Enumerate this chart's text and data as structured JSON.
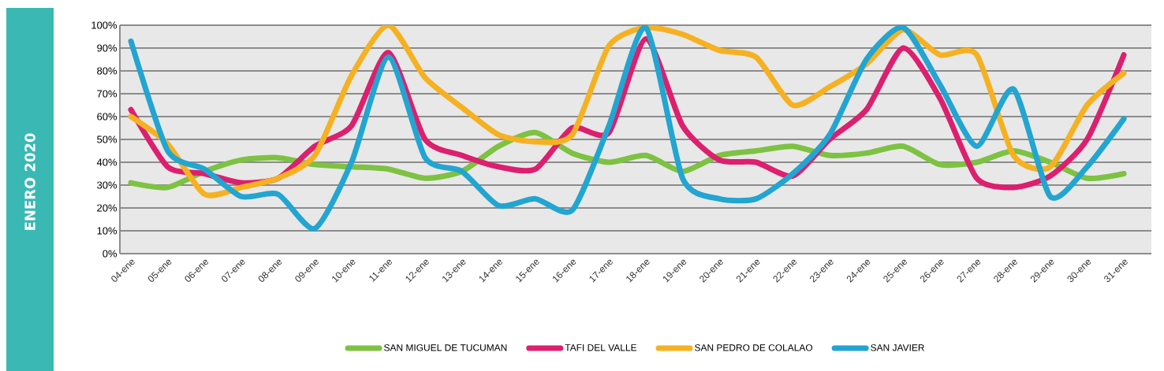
{
  "chart_data": {
    "type": "line",
    "title": "ENERO 2020",
    "categories": [
      "04-ene",
      "05-ene",
      "06-ene",
      "07-ene",
      "08-ene",
      "09-ene",
      "10-ene",
      "11-ene",
      "12-ene",
      "13-ene",
      "14-ene",
      "15-ene",
      "16-ene",
      "17-ene",
      "18-ene",
      "19-ene",
      "20-ene",
      "21-ene",
      "22-ene",
      "23-ene",
      "24-ene",
      "25-ene",
      "26-ene",
      "27-ene",
      "28-ene",
      "29-ene",
      "30-ene",
      "31-ene"
    ],
    "series": [
      {
        "name": "SAN MIGUEL DE TUCUMAN",
        "color": "#7dc242",
        "values": [
          31,
          29,
          36,
          41,
          42,
          39,
          38,
          37,
          33,
          36,
          47,
          53,
          44,
          40,
          43,
          36,
          43,
          45,
          47,
          43,
          44,
          47,
          39,
          40,
          45,
          40,
          33,
          35
        ]
      },
      {
        "name": "TAFI DEL VALLE",
        "color": "#dc1f6e",
        "values": [
          63,
          38,
          35,
          31,
          33,
          47,
          56,
          88,
          50,
          43,
          38,
          37,
          55,
          53,
          94,
          56,
          41,
          40,
          34,
          50,
          63,
          90,
          68,
          33,
          29,
          34,
          50,
          87
        ]
      },
      {
        "name": "SAN PEDRO DE COLALAO",
        "color": "#f5b121",
        "values": [
          60,
          48,
          26,
          29,
          33,
          43,
          78,
          100,
          77,
          64,
          52,
          49,
          52,
          91,
          99,
          96,
          89,
          86,
          65,
          73,
          83,
          98,
          87,
          87,
          43,
          38,
          65,
          79
        ]
      },
      {
        "name": "SAN JAVIER",
        "color": "#22a5d1",
        "values": [
          93,
          45,
          37,
          25,
          26,
          11,
          40,
          86,
          42,
          36,
          21,
          24,
          19,
          56,
          99,
          33,
          24,
          24,
          35,
          52,
          85,
          99,
          74,
          47,
          72,
          25,
          38,
          59
        ]
      }
    ],
    "ylim": [
      0,
      100
    ],
    "yticks": [
      {
        "value": 0,
        "label": "0%"
      },
      {
        "value": 10,
        "label": "10%"
      },
      {
        "value": 20,
        "label": "20%"
      },
      {
        "value": 30,
        "label": "30%"
      },
      {
        "value": 40,
        "label": "40%"
      },
      {
        "value": 50,
        "label": "50%"
      },
      {
        "value": 60,
        "label": "60%"
      },
      {
        "value": 70,
        "label": "70%"
      },
      {
        "value": 80,
        "label": "80%"
      },
      {
        "value": 90,
        "label": "90%"
      },
      {
        "value": 100,
        "label": "100%"
      }
    ],
    "grid": "y",
    "legend": "bottom",
    "marker": "none",
    "line_style": "solid"
  }
}
